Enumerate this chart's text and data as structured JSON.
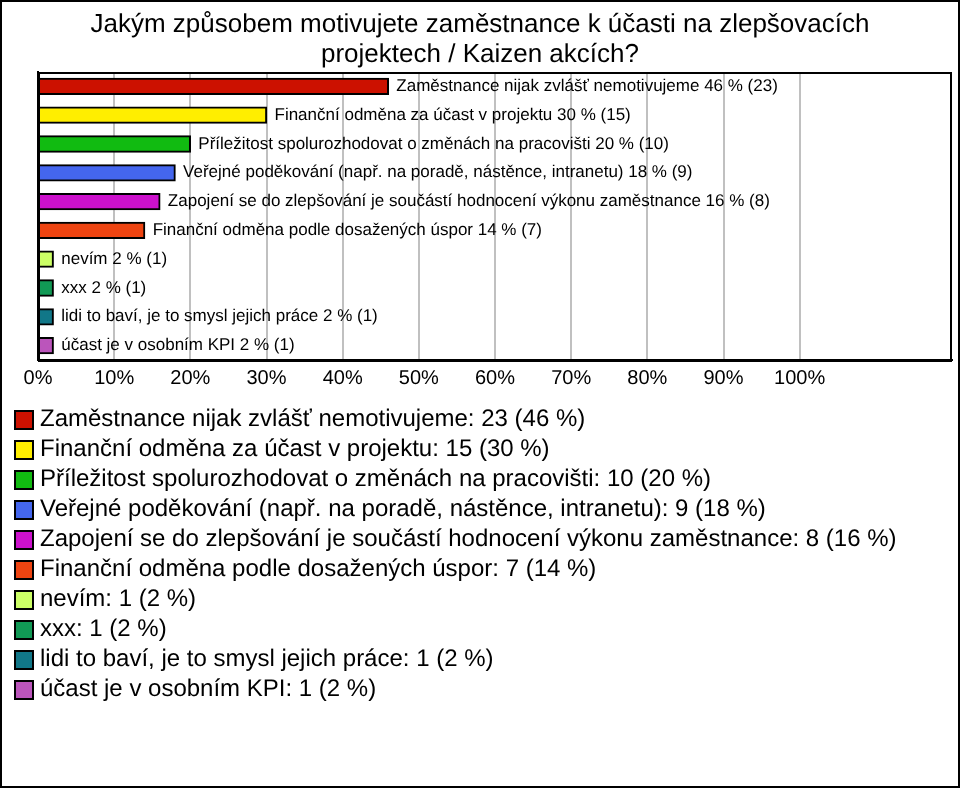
{
  "chart_data": {
    "type": "bar",
    "orientation": "horizontal",
    "stacked": true,
    "title": "Jakým způsobem motivujete zaměstnance k účasti na zlepšovacích projektech / Kaizen akcích?",
    "categories": [
      null,
      null,
      null,
      null,
      null,
      null,
      null,
      null,
      null,
      null
    ],
    "series": [
      {
        "name": "Zaměstnance nijak zvlášť nemotivujeme: 23 (46 %)",
        "color": "#cc1100",
        "values": [
          46,
          null,
          null,
          null,
          null,
          null,
          null,
          null,
          null,
          null
        ],
        "value_labels": [
          "Zaměstnance nijak zvlášť nemotivujeme 46 % (23)",
          null,
          null,
          null,
          null,
          null,
          null,
          null,
          null,
          null
        ]
      },
      {
        "name": "Finanční odměna za účast v projektu: 15 (30 %)",
        "color": "#ffee00",
        "values": [
          null,
          30,
          null,
          null,
          null,
          null,
          null,
          null,
          null,
          null
        ],
        "value_labels": [
          null,
          "Finanční odměna za účast v projektu 30 % (15)",
          null,
          null,
          null,
          null,
          null,
          null,
          null,
          null
        ]
      },
      {
        "name": "Příležitost spolurozhodovat o změnách na pracovišti: 10 (20 %)",
        "color": "#11bb11",
        "values": [
          null,
          null,
          20,
          null,
          null,
          null,
          null,
          null,
          null,
          null
        ],
        "value_labels": [
          null,
          null,
          "Příležitost spolurozhodovat o změnách na pracovišti 20 % (10)",
          null,
          null,
          null,
          null,
          null,
          null,
          null
        ]
      },
      {
        "name": "Veřejné poděkování (např. na poradě, nástěnce, intranetu): 9 (18 %)",
        "color": "#4466ee",
        "values": [
          null,
          null,
          null,
          18,
          null,
          null,
          null,
          null,
          null,
          null
        ],
        "value_labels": [
          null,
          null,
          null,
          "Veřejné poděkování (např. na poradě, nástěnce, intranetu) 18 % (9)",
          null,
          null,
          null,
          null,
          null,
          null
        ]
      },
      {
        "name": "Zapojení se do zlepšování je součástí hodnocení výkonu zaměstnance: 8 (16 %)",
        "color": "#cc11cc",
        "values": [
          null,
          null,
          null,
          null,
          16,
          null,
          null,
          null,
          null,
          null
        ],
        "value_labels": [
          null,
          null,
          null,
          null,
          "Zapojení se do zlepšování je součástí hodnocení výkonu zaměstnance 16 % (8)",
          null,
          null,
          null,
          null,
          null
        ]
      },
      {
        "name": "Finanční odměna podle dosažených úspor: 7 (14 %)",
        "color": "#ee4411",
        "values": [
          null,
          null,
          null,
          null,
          null,
          14,
          null,
          null,
          null,
          null
        ],
        "value_labels": [
          null,
          null,
          null,
          null,
          null,
          "Finanční odměna podle dosažených úspor 14 % (7)",
          null,
          null,
          null,
          null
        ]
      },
      {
        "name": "nevím: 1 (2 %)",
        "color": "#ccff66",
        "values": [
          null,
          null,
          null,
          null,
          null,
          null,
          2,
          null,
          null,
          null
        ],
        "value_labels": [
          null,
          null,
          null,
          null,
          null,
          null,
          "nevím 2 % (1)",
          null,
          null,
          null
        ]
      },
      {
        "name": "xxx: 1 (2 %)",
        "color": "#119955",
        "values": [
          null,
          null,
          null,
          null,
          null,
          null,
          null,
          2,
          null,
          null
        ],
        "value_labels": [
          null,
          null,
          null,
          null,
          null,
          null,
          null,
          "xxx 2 % (1)",
          null,
          null
        ]
      },
      {
        "name": "lidi to baví, je to smysl jejich práce: 1 (2 %)",
        "color": "#117788",
        "values": [
          null,
          null,
          null,
          null,
          null,
          null,
          null,
          null,
          2,
          null
        ],
        "value_labels": [
          null,
          null,
          null,
          null,
          null,
          null,
          null,
          null,
          "lidi to baví, je to smysl jejich práce 2 % (1)",
          null
        ]
      },
      {
        "name": "účast je v osobním KPI: 1 (2 %)",
        "color": "#bb55bb",
        "values": [
          null,
          null,
          null,
          null,
          null,
          null,
          null,
          null,
          null,
          2
        ],
        "value_labels": [
          null,
          null,
          null,
          null,
          null,
          null,
          null,
          null,
          null,
          "účast je v osobním KPI 2 % (1)"
        ]
      }
    ],
    "xlim": [
      0,
      120
    ],
    "xticks": [
      {
        "value": 0,
        "label": "0%"
      },
      {
        "value": 10,
        "label": "10%"
      },
      {
        "value": 20,
        "label": "20%"
      },
      {
        "value": 30,
        "label": "30%"
      },
      {
        "value": 40,
        "label": "40%"
      },
      {
        "value": 50,
        "label": "50%"
      },
      {
        "value": 60,
        "label": "60%"
      },
      {
        "value": 70,
        "label": "70%"
      },
      {
        "value": 80,
        "label": "80%"
      },
      {
        "value": 90,
        "label": "90%"
      },
      {
        "value": 100,
        "label": "100%"
      }
    ],
    "grid": "x",
    "legend": "bottom",
    "tick_labels": "x"
  }
}
